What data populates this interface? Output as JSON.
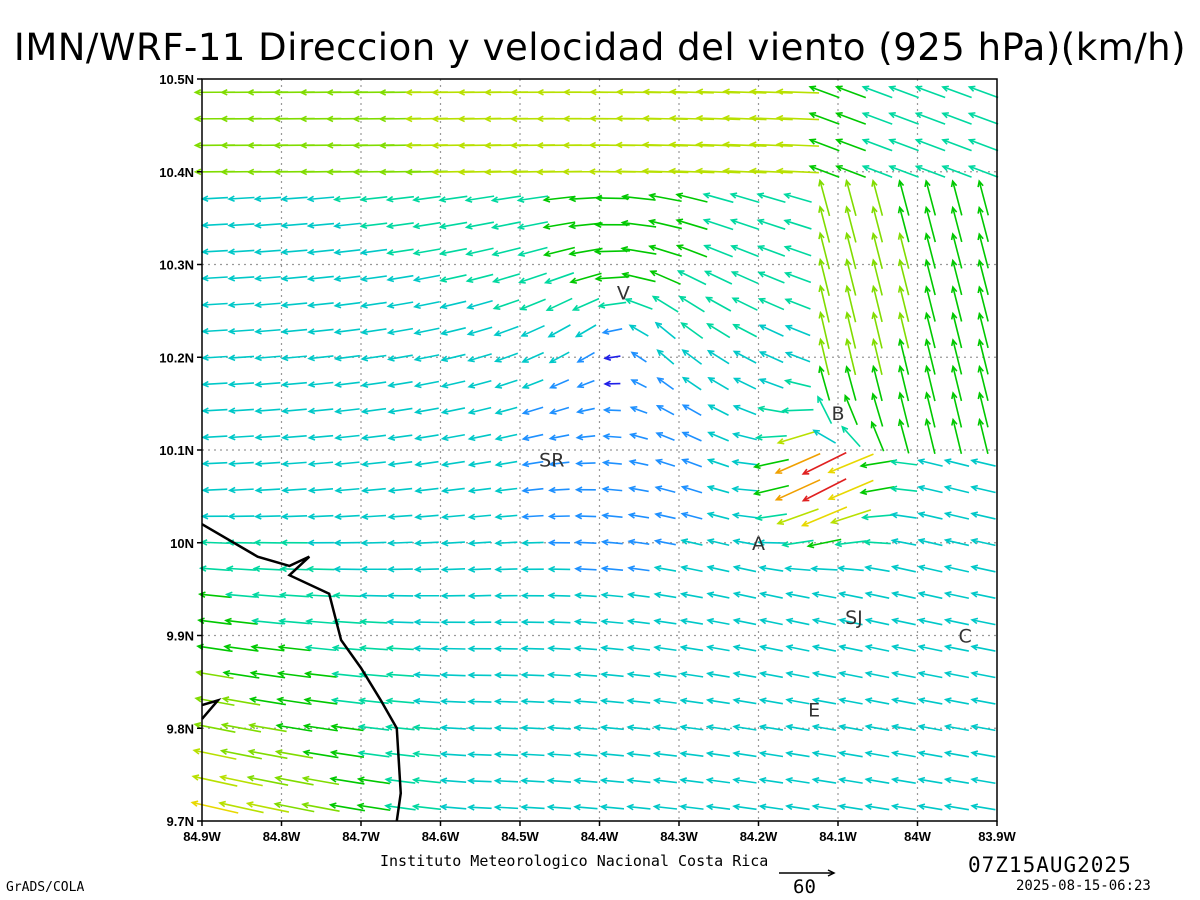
{
  "title": "IMN/WRF-11 Direccion y velocidad del viento (925 hPa)(km/h)",
  "footer": {
    "institution": "Instituto Meteorologico Nacional Costa Rica",
    "software": "GrADS/COLA",
    "valid_time": "07Z15AUG2025",
    "generated": "2025-08-15-06:23",
    "reference_vector_label": "60"
  },
  "map": {
    "lon_range": [
      -84.9,
      -83.9
    ],
    "lat_range": [
      9.7,
      10.5
    ],
    "lon_ticks": [
      "84.9W",
      "84.8W",
      "84.7W",
      "84.6W",
      "84.5W",
      "84.4W",
      "84.3W",
      "84.2W",
      "84.1W",
      "84W",
      "83.9W"
    ],
    "lat_ticks": [
      "10.5N",
      "10.4N",
      "10.3N",
      "10.2N",
      "10.1N",
      "10N",
      "9.9N",
      "9.8N",
      "9.7N"
    ],
    "grid_lines": "dotted",
    "station_labels": [
      {
        "label": "V",
        "lon": -84.37,
        "lat": 10.27
      },
      {
        "label": "B",
        "lon": -84.1,
        "lat": 10.14
      },
      {
        "label": "SR",
        "lon": -84.46,
        "lat": 10.09
      },
      {
        "label": "A",
        "lon": -84.2,
        "lat": 10.0
      },
      {
        "label": "SJ",
        "lon": -84.08,
        "lat": 9.92
      },
      {
        "label": "C",
        "lon": -83.94,
        "lat": 9.9
      },
      {
        "label": "E",
        "lon": -84.13,
        "lat": 9.82
      }
    ],
    "coastline": [
      [
        -84.9,
        10.02
      ],
      [
        -84.83,
        9.985
      ],
      [
        -84.79,
        9.975
      ],
      [
        -84.765,
        9.985
      ],
      [
        -84.79,
        9.965
      ],
      [
        -84.74,
        9.945
      ],
      [
        -84.725,
        9.895
      ],
      [
        -84.7,
        9.865
      ],
      [
        -84.675,
        9.83
      ],
      [
        -84.655,
        9.8
      ],
      [
        -84.65,
        9.73
      ],
      [
        -84.655,
        9.7
      ]
    ],
    "coastline_small": [
      [
        -84.9,
        9.81
      ],
      [
        -84.88,
        9.83
      ],
      [
        -84.9,
        9.825
      ]
    ],
    "vector_palette": [
      "#8000e0",
      "#2020e8",
      "#1e90ff",
      "#00c8c8",
      "#00d8a0",
      "#00c800",
      "#80dc00",
      "#b8e000",
      "#e8d800",
      "#f0a000",
      "#f06020",
      "#e02020"
    ]
  }
}
